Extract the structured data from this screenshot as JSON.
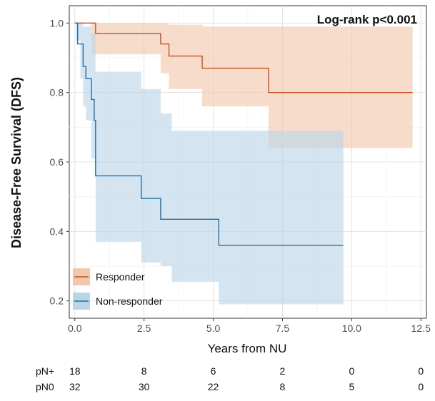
{
  "chart_data": {
    "type": "line",
    "subtype": "kaplan-meier survival curve with confidence bands",
    "title": "",
    "annotation": "Log-rank p<0.001",
    "xlabel": "Years from NU",
    "ylabel": "Disease-Free Survival (DFS)",
    "xlim": [
      -0.2,
      12.7
    ],
    "ylim": [
      0.15,
      1.05
    ],
    "x_ticks": [
      0,
      2.5,
      5,
      7.5,
      10,
      12.5
    ],
    "x_tick_labels": [
      "0.0",
      "2.5",
      "5.0",
      "7.5",
      "10.0",
      "12.5"
    ],
    "y_ticks": [
      0.2,
      0.4,
      0.6,
      0.8,
      1.0
    ],
    "y_tick_labels": [
      "0.2",
      "0.4",
      "0.6",
      "0.8",
      "1.0"
    ],
    "grid": true,
    "legend_position": "bottom-left",
    "series": [
      {
        "name": "Responder",
        "color": "#c8501e",
        "fill": "#f2c7ad",
        "steps": [
          [
            0,
            1.0
          ],
          [
            0.75,
            0.97
          ],
          [
            3.1,
            0.94
          ],
          [
            3.4,
            0.905
          ],
          [
            4.6,
            0.87
          ],
          [
            7.0,
            0.8
          ],
          [
            12.2,
            0.8
          ]
        ],
        "band": [
          [
            0,
            1.0,
            1.0
          ],
          [
            0.6,
            0.91,
            1.0
          ],
          [
            3.1,
            0.855,
            1.0
          ],
          [
            3.4,
            0.81,
            0.995
          ],
          [
            4.6,
            0.76,
            0.99
          ],
          [
            7.0,
            0.64,
            0.99
          ],
          [
            12.2,
            0.64,
            0.99
          ]
        ]
      },
      {
        "name": "Non-responder",
        "color": "#1f6fa8",
        "fill": "#b9d5e9",
        "steps": [
          [
            0,
            1.0
          ],
          [
            0.1,
            0.94
          ],
          [
            0.3,
            0.875
          ],
          [
            0.4,
            0.84
          ],
          [
            0.6,
            0.78
          ],
          [
            0.7,
            0.72
          ],
          [
            0.75,
            0.56
          ],
          [
            2.4,
            0.495
          ],
          [
            3.1,
            0.435
          ],
          [
            5.2,
            0.36
          ],
          [
            9.7,
            0.36
          ]
        ],
        "band": [
          [
            0,
            1.0,
            1.0
          ],
          [
            0.05,
            0.95,
            1.0
          ],
          [
            0.2,
            0.84,
            1.0
          ],
          [
            0.3,
            0.76,
            0.99
          ],
          [
            0.4,
            0.72,
            0.99
          ],
          [
            0.6,
            0.61,
            0.97
          ],
          [
            0.75,
            0.37,
            0.86
          ],
          [
            2.4,
            0.31,
            0.81
          ],
          [
            3.1,
            0.3,
            0.74
          ],
          [
            3.5,
            0.255,
            0.69
          ],
          [
            5.2,
            0.19,
            0.69
          ],
          [
            9.7,
            0.19,
            0.69
          ]
        ]
      }
    ],
    "risk_table": {
      "times": [
        0,
        2.5,
        5,
        7.5,
        10,
        12.5
      ],
      "rows": [
        {
          "label": "pN+",
          "values": [
            "18",
            "8",
            "6",
            "2",
            "0",
            "0"
          ]
        },
        {
          "label": "pN0",
          "values": [
            "32",
            "30",
            "22",
            "8",
            "5",
            "0"
          ]
        }
      ]
    }
  }
}
